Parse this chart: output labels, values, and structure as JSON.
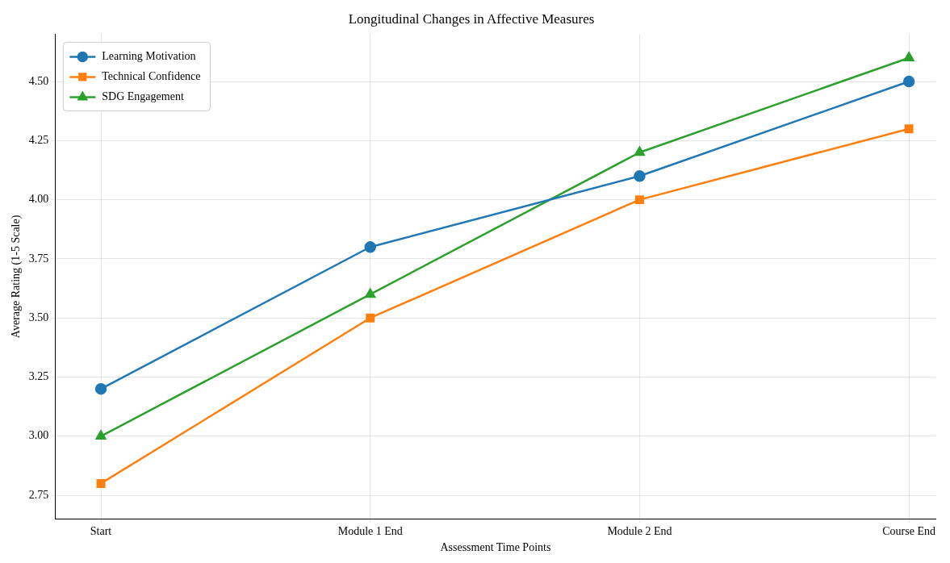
{
  "chart_data": {
    "type": "line",
    "title": "Longitudinal Changes in Affective Measures",
    "xlabel": "Assessment Time Points",
    "ylabel": "Average Rating (1-5 Scale)",
    "categories": [
      "Start",
      "Module 1 End",
      "Module 2 End",
      "Course End"
    ],
    "series": [
      {
        "name": "Learning Motivation",
        "color": "#1f77b4",
        "marker": "circle",
        "values": [
          3.2,
          3.8,
          4.1,
          4.5
        ]
      },
      {
        "name": "Technical Confidence",
        "color": "#ff7f0e",
        "marker": "square",
        "values": [
          2.8,
          3.5,
          4.0,
          4.3
        ]
      },
      {
        "name": "SDG Engagement",
        "color": "#2ca02c",
        "marker": "triangle",
        "values": [
          3.0,
          3.6,
          4.2,
          4.6
        ]
      }
    ],
    "ylim": [
      2.65,
      4.7
    ],
    "yticks": [
      {
        "value": 2.75,
        "label": "2.75"
      },
      {
        "value": 3,
        "label": "3.00"
      },
      {
        "value": 3.25,
        "label": "3.25"
      },
      {
        "value": 3.5,
        "label": "3.50"
      },
      {
        "value": 3.75,
        "label": "3.75"
      },
      {
        "value": 4,
        "label": "4.00"
      },
      {
        "value": 4.25,
        "label": "4.25"
      },
      {
        "value": 4.5,
        "label": "4.50"
      }
    ],
    "grid": true,
    "legend": "top left",
    "line_style": "solid"
  }
}
